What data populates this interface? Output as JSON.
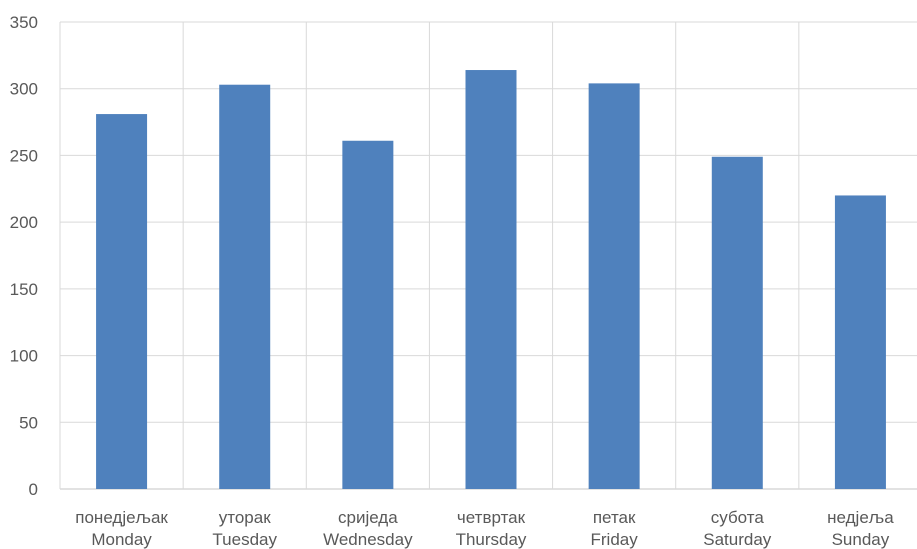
{
  "chart_data": {
    "type": "bar",
    "title": "",
    "xlabel": "",
    "ylabel": "",
    "categories": [
      [
        "понедјељак",
        "Monday"
      ],
      [
        "уторак",
        "Tuesday"
      ],
      [
        "сриједа",
        "Wednesday"
      ],
      [
        "четвртак",
        "Thursday"
      ],
      [
        "петак",
        "Friday"
      ],
      [
        "субота",
        "Saturday"
      ],
      [
        "недјеља",
        "Sunday"
      ]
    ],
    "values": [
      281,
      303,
      261,
      314,
      304,
      249,
      220
    ],
    "ylim": [
      0,
      350
    ],
    "yticks": [
      0,
      50,
      100,
      150,
      200,
      250,
      300,
      350
    ],
    "grid": true,
    "legend": "none",
    "bar_color": "#4f81bd",
    "grid_color": "#d9d9d9",
    "text_color": "#595959"
  }
}
